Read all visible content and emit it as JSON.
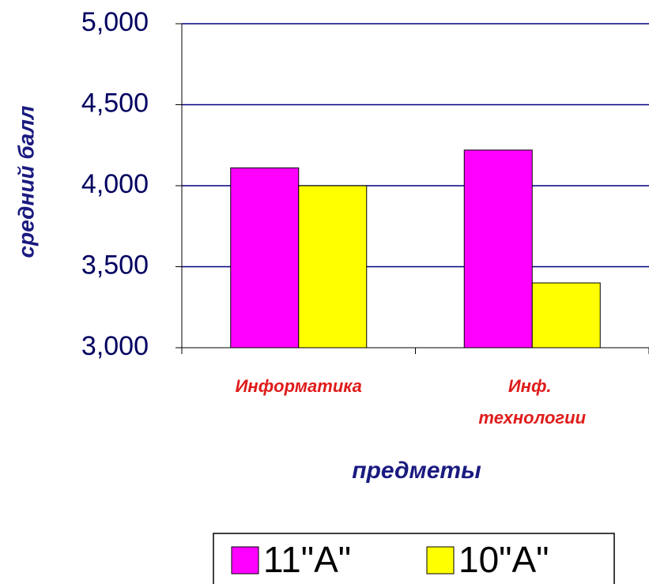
{
  "chart_data": {
    "type": "bar",
    "categories": [
      "Информатика",
      "Инф. технологии"
    ],
    "series": [
      {
        "name": "11\"А\"",
        "color": "#ff00ff",
        "values": [
          4.11,
          4.22
        ]
      },
      {
        "name": "10\"А\"",
        "color": "#ffff00",
        "values": [
          4.0,
          3.4
        ]
      }
    ],
    "y_label": "средний балл",
    "x_label": "предметы",
    "ylim": [
      3,
      5
    ],
    "yticks": [
      {
        "value": 3,
        "label": "3,000"
      },
      {
        "value": 3.5,
        "label": "3,500"
      },
      {
        "value": 4,
        "label": "4,000"
      },
      {
        "value": 4.5,
        "label": "4,500"
      },
      {
        "value": 5,
        "label": "5,000"
      }
    ],
    "grid": true,
    "legend": "bottom"
  }
}
